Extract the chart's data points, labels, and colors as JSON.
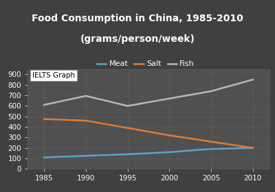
{
  "title_line1": "Food Consumption in China, 1985-2010",
  "title_line2": "(grams/person/week)",
  "years": [
    1985,
    1990,
    1995,
    2000,
    2005,
    2010
  ],
  "meat": [
    110,
    125,
    140,
    160,
    190,
    200
  ],
  "salt": [
    475,
    460,
    390,
    320,
    260,
    200
  ],
  "fish": [
    610,
    695,
    600,
    670,
    740,
    850
  ],
  "meat_color": "#5ba3cf",
  "salt_color": "#e07b30",
  "fish_color": "#b8b8b8",
  "bg_color": "#404040",
  "plot_bg_color": "#505050",
  "text_color": "#ffffff",
  "grid_color": "#606060",
  "ylim": [
    0,
    950
  ],
  "yticks": [
    0,
    100,
    200,
    300,
    400,
    500,
    600,
    700,
    800,
    900
  ],
  "xticks": [
    1985,
    1990,
    1995,
    2000,
    2005,
    2010
  ],
  "xlim": [
    1983,
    2012
  ],
  "title_fontsize": 10,
  "legend_fontsize": 8,
  "tick_fontsize": 7.5,
  "watermark_text": "IELTS Graph",
  "watermark_fontsize": 7.5
}
